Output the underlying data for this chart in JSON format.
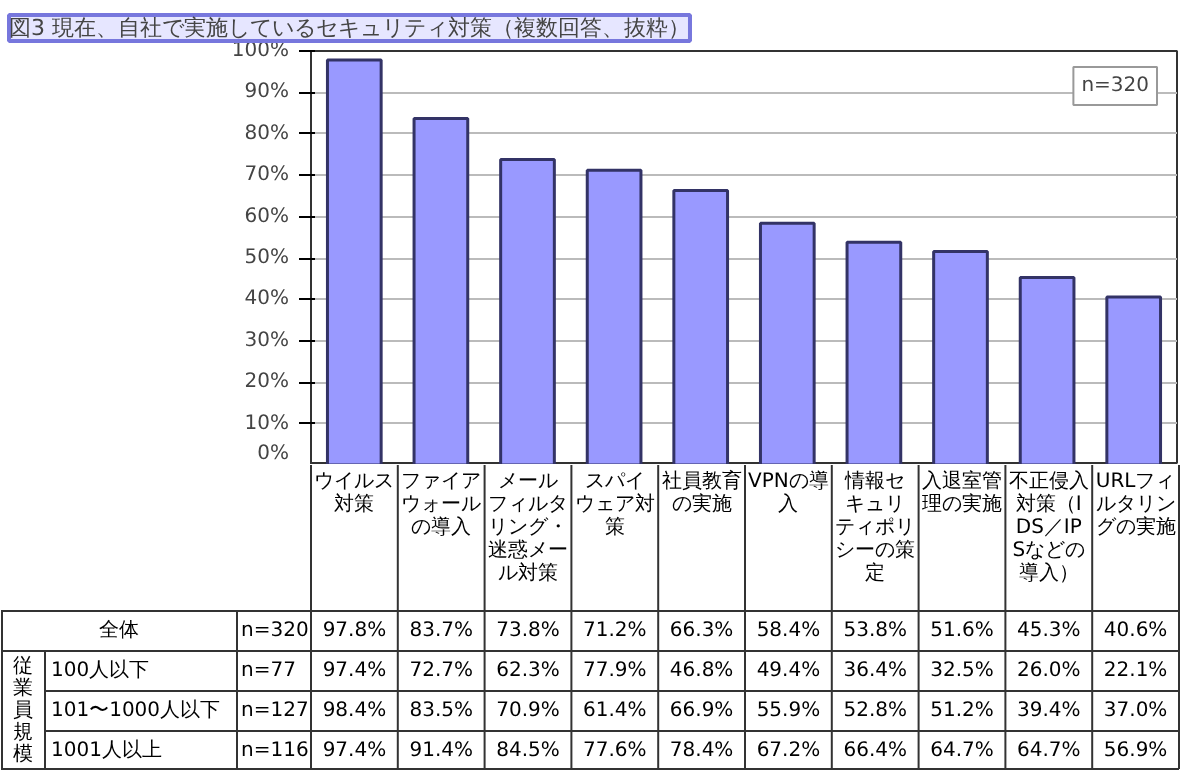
{
  "chart_data": {
    "type": "bar",
    "title": "図3 現在、自社で実施しているセキュリティ対策（複数回答、抜粋）",
    "categories": [
      "ウイルス対策",
      "ファイアウォールの導入",
      "メールフィルタリング・迷惑メール対策",
      "スパイウェア対策",
      "社員教育の実施",
      "VPNの導入",
      "情報セキュリティポリシーの策定",
      "入退室管理の実施",
      "不正侵入対策（IDS／IPSなどの導入）",
      "URLフィルタリングの実施"
    ],
    "series": [
      {
        "name": "全体",
        "color": "#9999ff",
        "values": [
          97.8,
          83.7,
          73.8,
          71.2,
          66.3,
          58.4,
          53.8,
          51.6,
          45.3,
          40.6
        ],
        "value_labels": [
          "97.8%",
          "83.7%",
          "73.8%",
          "71.2%",
          "66.3%",
          "58.4%",
          "53.8%",
          "51.6%",
          "45.3%",
          "40.6%"
        ]
      }
    ],
    "ylim": [
      0,
      100
    ],
    "yticks": [
      {
        "value": 0,
        "label": "0%"
      },
      {
        "value": 10,
        "label": "10%"
      },
      {
        "value": 20,
        "label": "20%"
      },
      {
        "value": 30,
        "label": "30%"
      },
      {
        "value": 40,
        "label": "40%"
      },
      {
        "value": 50,
        "label": "50%"
      },
      {
        "value": 60,
        "label": "60%"
      },
      {
        "value": 70,
        "label": "70%"
      },
      {
        "value": 80,
        "label": "80%"
      },
      {
        "value": 90,
        "label": "90%"
      },
      {
        "value": 100,
        "label": "100%"
      }
    ],
    "grid": "y",
    "annotations": [
      "n=320",
      "従業員規模",
      "n=320",
      "100人以下",
      "n=77",
      "97.4%",
      "72.7%",
      "62.3%",
      "77.9%",
      "46.8%",
      "49.4%",
      "36.4%",
      "32.5%",
      "26.0%",
      "22.1%",
      "101〜1000人以下",
      "n=127",
      "98.4%",
      "83.5%",
      "70.9%",
      "61.4%",
      "66.9%",
      "55.9%",
      "52.8%",
      "51.2%",
      "39.4%",
      "37.0%",
      "1001人以上",
      "n=116",
      "97.4%",
      "91.4%",
      "84.5%",
      "77.6%",
      "78.4%",
      "67.2%",
      "66.4%",
      "64.7%",
      "64.7%",
      "56.9%"
    ]
  }
}
